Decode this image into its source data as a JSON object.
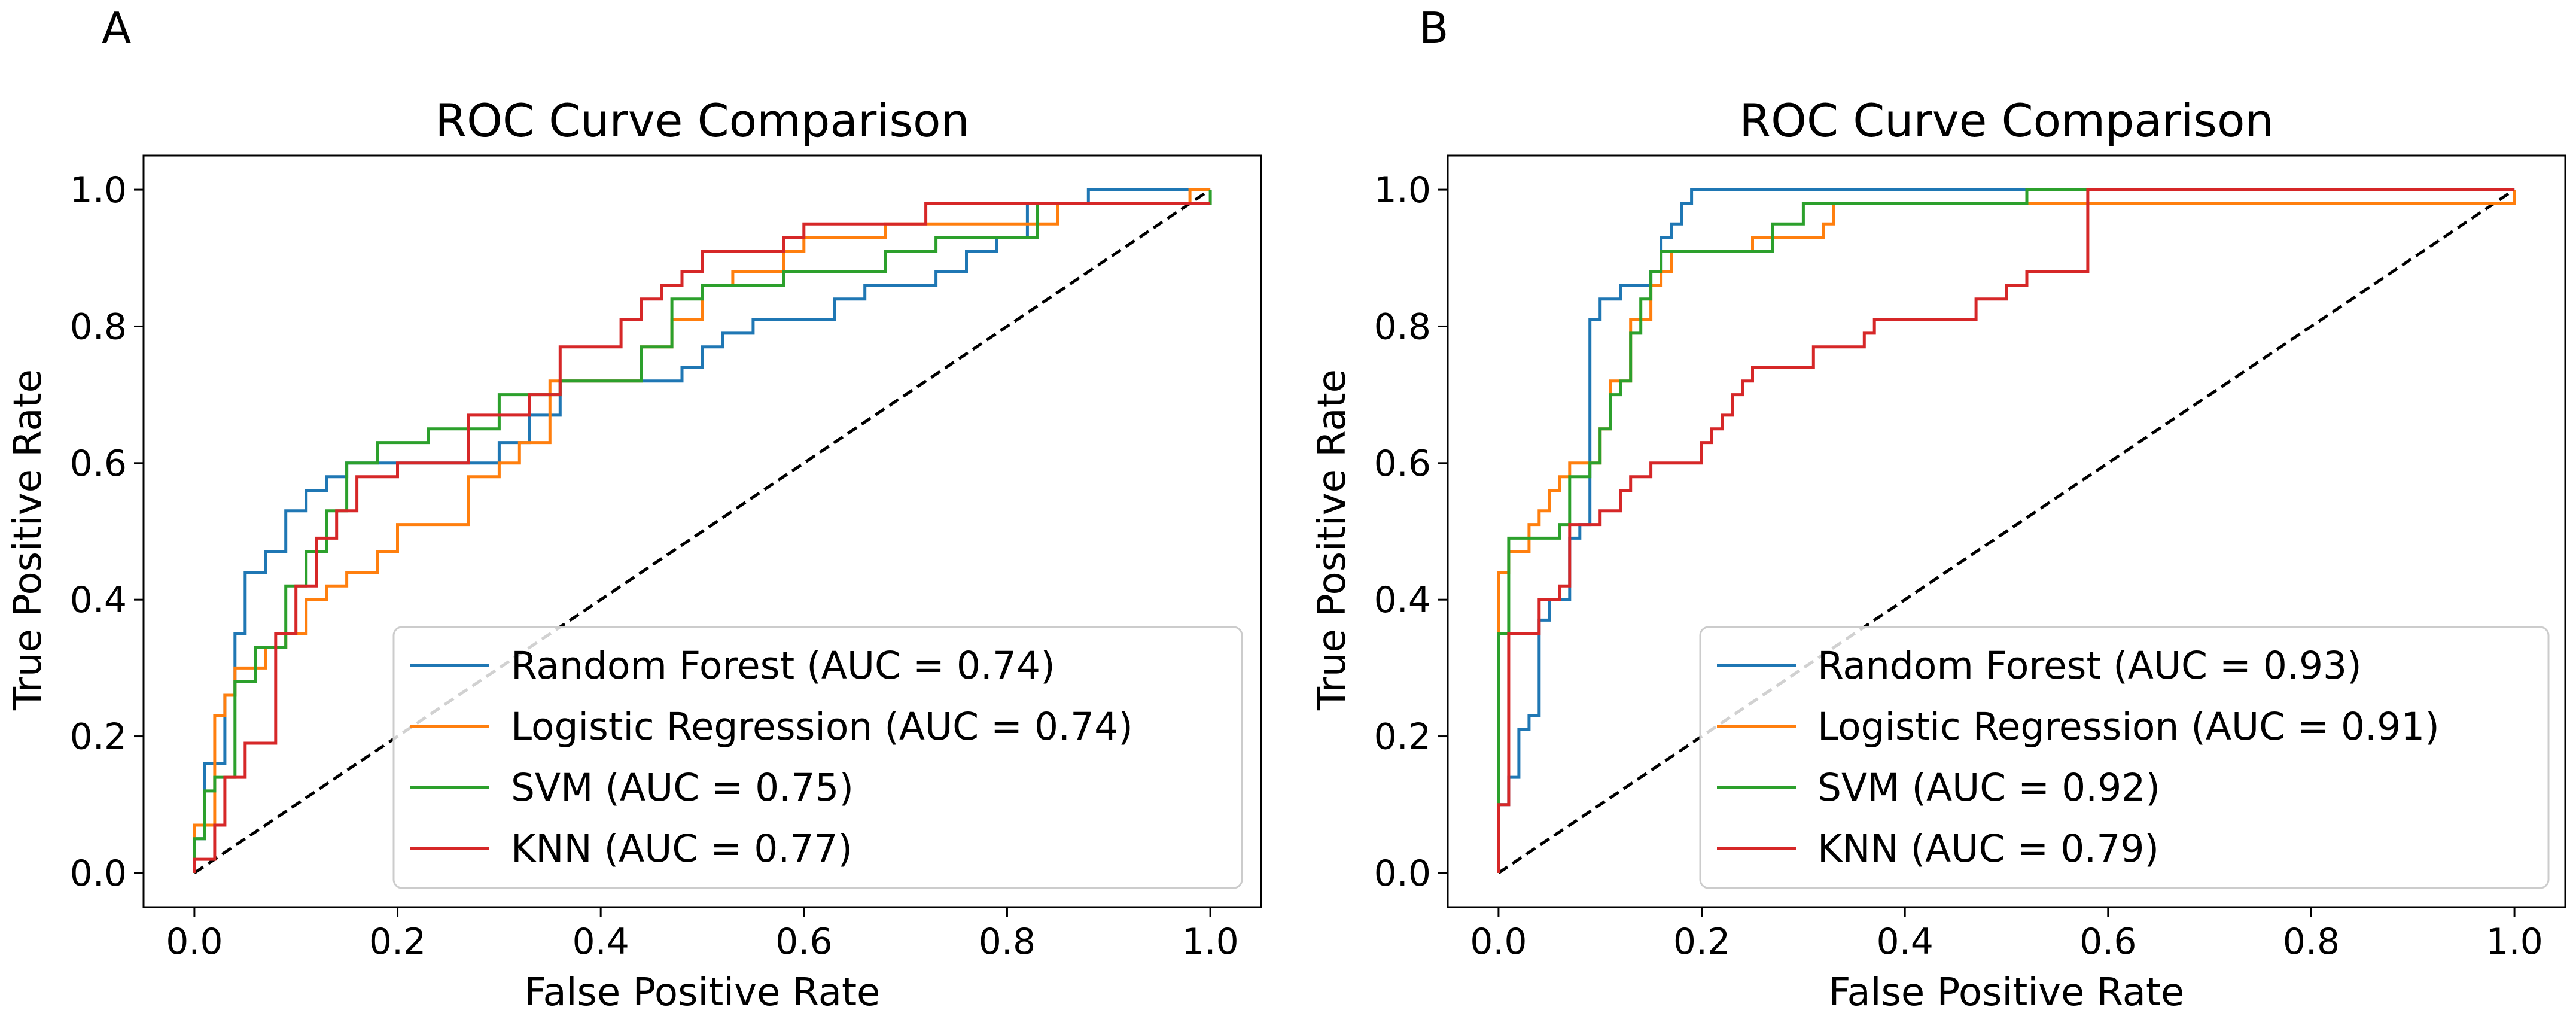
{
  "chart_data": [
    {
      "type": "line",
      "panel_label": "A",
      "title": "ROC Curve Comparison",
      "xlabel": "False Positive Rate",
      "ylabel": "True Positive Rate",
      "xlim": [
        -0.05,
        1.05
      ],
      "ylim": [
        -0.05,
        1.05
      ],
      "xticks": [
        "0.0",
        "0.2",
        "0.4",
        "0.6",
        "0.8",
        "1.0"
      ],
      "yticks": [
        "0.0",
        "0.2",
        "0.4",
        "0.6",
        "0.8",
        "1.0"
      ],
      "legend_position": "lower-right",
      "reference_line": {
        "x": [
          0,
          1
        ],
        "y": [
          0,
          1
        ],
        "style": "dashed",
        "color": "#000000"
      },
      "series": [
        {
          "name": "Random Forest (AUC = 0.74)",
          "color": "#1f77b4",
          "x": [
            0,
            0,
            0.01,
            0.01,
            0.03,
            0.03,
            0.04,
            0.04,
            0.05,
            0.05,
            0.07,
            0.07,
            0.09,
            0.09,
            0.11,
            0.11,
            0.13,
            0.13,
            0.15,
            0.15,
            0.17,
            0.17,
            0.2,
            0.2,
            0.24,
            0.24,
            0.3,
            0.3,
            0.33,
            0.33,
            0.36,
            0.36,
            0.4,
            0.4,
            0.48,
            0.48,
            0.5,
            0.5,
            0.52,
            0.52,
            0.55,
            0.55,
            0.58,
            0.58,
            0.63,
            0.63,
            0.66,
            0.66,
            0.69,
            0.69,
            0.73,
            0.73,
            0.76,
            0.76,
            0.79,
            0.79,
            0.82,
            0.82,
            0.88,
            0.88,
            1.0
          ],
          "y": [
            0,
            0.05,
            0.05,
            0.16,
            0.16,
            0.26,
            0.26,
            0.35,
            0.35,
            0.44,
            0.44,
            0.47,
            0.47,
            0.53,
            0.53,
            0.56,
            0.56,
            0.58,
            0.58,
            0.6,
            0.6,
            0.6,
            0.6,
            0.6,
            0.6,
            0.6,
            0.6,
            0.63,
            0.63,
            0.67,
            0.67,
            0.72,
            0.72,
            0.72,
            0.72,
            0.74,
            0.74,
            0.77,
            0.77,
            0.79,
            0.79,
            0.81,
            0.81,
            0.81,
            0.81,
            0.84,
            0.84,
            0.86,
            0.86,
            0.86,
            0.86,
            0.88,
            0.88,
            0.91,
            0.91,
            0.93,
            0.93,
            0.98,
            0.98,
            1.0,
            1.0
          ]
        },
        {
          "name": "Logistic Regression (AUC = 0.74)",
          "color": "#ff7f0e",
          "x": [
            0,
            0,
            0.02,
            0.02,
            0.03,
            0.03,
            0.04,
            0.04,
            0.07,
            0.07,
            0.09,
            0.09,
            0.11,
            0.11,
            0.13,
            0.13,
            0.15,
            0.15,
            0.18,
            0.18,
            0.2,
            0.2,
            0.27,
            0.27,
            0.3,
            0.3,
            0.32,
            0.32,
            0.35,
            0.35,
            0.44,
            0.44,
            0.47,
            0.47,
            0.5,
            0.5,
            0.53,
            0.53,
            0.55,
            0.55,
            0.58,
            0.58,
            0.6,
            0.6,
            0.68,
            0.68,
            0.85,
            0.85,
            0.98,
            0.98,
            1.0
          ],
          "y": [
            0,
            0.07,
            0.07,
            0.23,
            0.23,
            0.26,
            0.26,
            0.3,
            0.3,
            0.33,
            0.33,
            0.35,
            0.35,
            0.4,
            0.4,
            0.42,
            0.42,
            0.44,
            0.44,
            0.47,
            0.47,
            0.51,
            0.51,
            0.58,
            0.58,
            0.6,
            0.6,
            0.63,
            0.63,
            0.72,
            0.72,
            0.77,
            0.77,
            0.81,
            0.81,
            0.86,
            0.86,
            0.88,
            0.88,
            0.88,
            0.88,
            0.91,
            0.91,
            0.93,
            0.93,
            0.95,
            0.95,
            0.98,
            0.98,
            1.0,
            1.0
          ]
        },
        {
          "name": "SVM (AUC = 0.75)",
          "color": "#2ca02c",
          "x": [
            0,
            0,
            0.01,
            0.01,
            0.02,
            0.02,
            0.04,
            0.04,
            0.06,
            0.06,
            0.09,
            0.09,
            0.11,
            0.11,
            0.13,
            0.13,
            0.15,
            0.15,
            0.18,
            0.18,
            0.23,
            0.23,
            0.3,
            0.3,
            0.32,
            0.32,
            0.36,
            0.36,
            0.44,
            0.44,
            0.47,
            0.47,
            0.5,
            0.5,
            0.58,
            0.58,
            0.68,
            0.68,
            0.73,
            0.73,
            0.83,
            0.83,
            1.0,
            1.0
          ],
          "y": [
            0,
            0.05,
            0.05,
            0.12,
            0.12,
            0.14,
            0.14,
            0.28,
            0.28,
            0.33,
            0.33,
            0.42,
            0.42,
            0.47,
            0.47,
            0.53,
            0.53,
            0.6,
            0.6,
            0.63,
            0.63,
            0.65,
            0.65,
            0.7,
            0.7,
            0.7,
            0.7,
            0.72,
            0.72,
            0.77,
            0.77,
            0.84,
            0.84,
            0.86,
            0.86,
            0.88,
            0.88,
            0.91,
            0.91,
            0.93,
            0.93,
            0.98,
            0.98,
            1.0
          ]
        },
        {
          "name": "KNN (AUC = 0.77)",
          "color": "#d62728",
          "x": [
            0,
            0,
            0.02,
            0.02,
            0.03,
            0.03,
            0.05,
            0.05,
            0.08,
            0.08,
            0.1,
            0.1,
            0.12,
            0.12,
            0.14,
            0.14,
            0.16,
            0.16,
            0.2,
            0.2,
            0.27,
            0.27,
            0.33,
            0.33,
            0.36,
            0.36,
            0.42,
            0.42,
            0.44,
            0.44,
            0.46,
            0.46,
            0.48,
            0.48,
            0.5,
            0.5,
            0.55,
            0.55,
            0.58,
            0.58,
            0.6,
            0.6,
            0.68,
            0.68,
            0.72,
            0.72,
            1.0
          ],
          "y": [
            0,
            0.02,
            0.02,
            0.07,
            0.07,
            0.14,
            0.14,
            0.19,
            0.19,
            0.35,
            0.35,
            0.42,
            0.42,
            0.49,
            0.49,
            0.53,
            0.53,
            0.58,
            0.58,
            0.6,
            0.6,
            0.67,
            0.67,
            0.7,
            0.7,
            0.77,
            0.77,
            0.81,
            0.81,
            0.84,
            0.84,
            0.86,
            0.86,
            0.88,
            0.88,
            0.91,
            0.91,
            0.91,
            0.91,
            0.93,
            0.93,
            0.95,
            0.95,
            0.95,
            0.95,
            0.98,
            0.98
          ]
        }
      ]
    },
    {
      "type": "line",
      "panel_label": "B",
      "title": "ROC Curve Comparison",
      "xlabel": "False Positive Rate",
      "ylabel": "True Positive Rate",
      "xlim": [
        -0.05,
        1.05
      ],
      "ylim": [
        -0.05,
        1.05
      ],
      "xticks": [
        "0.0",
        "0.2",
        "0.4",
        "0.6",
        "0.8",
        "1.0"
      ],
      "yticks": [
        "0.0",
        "0.2",
        "0.4",
        "0.6",
        "0.8",
        "1.0"
      ],
      "legend_position": "lower-right",
      "reference_line": {
        "x": [
          0,
          1
        ],
        "y": [
          0,
          1
        ],
        "style": "dashed",
        "color": "#000000"
      },
      "series": [
        {
          "name": "Random Forest (AUC = 0.93)",
          "color": "#1f77b4",
          "x": [
            0,
            0,
            0.01,
            0.01,
            0.02,
            0.02,
            0.03,
            0.03,
            0.04,
            0.04,
            0.05,
            0.05,
            0.07,
            0.07,
            0.08,
            0.08,
            0.09,
            0.09,
            0.1,
            0.1,
            0.12,
            0.12,
            0.15,
            0.15,
            0.16,
            0.16,
            0.17,
            0.17,
            0.18,
            0.18,
            0.19,
            0.19,
            1.0
          ],
          "y": [
            0,
            0.1,
            0.1,
            0.14,
            0.14,
            0.21,
            0.21,
            0.23,
            0.23,
            0.37,
            0.37,
            0.4,
            0.4,
            0.49,
            0.49,
            0.51,
            0.51,
            0.81,
            0.81,
            0.84,
            0.84,
            0.86,
            0.86,
            0.88,
            0.88,
            0.93,
            0.93,
            0.95,
            0.95,
            0.98,
            0.98,
            1.0,
            1.0
          ]
        },
        {
          "name": "Logistic Regression (AUC = 0.91)",
          "color": "#ff7f0e",
          "x": [
            0,
            0,
            0.01,
            0.01,
            0.03,
            0.03,
            0.04,
            0.04,
            0.05,
            0.05,
            0.06,
            0.06,
            0.07,
            0.07,
            0.1,
            0.1,
            0.11,
            0.11,
            0.13,
            0.13,
            0.15,
            0.15,
            0.16,
            0.16,
            0.17,
            0.17,
            0.25,
            0.25,
            0.32,
            0.32,
            0.33,
            0.33,
            0.34,
            0.34,
            1.0,
            1.0
          ],
          "y": [
            0,
            0.44,
            0.44,
            0.47,
            0.47,
            0.51,
            0.51,
            0.53,
            0.53,
            0.56,
            0.56,
            0.58,
            0.58,
            0.6,
            0.6,
            0.65,
            0.65,
            0.72,
            0.72,
            0.81,
            0.81,
            0.86,
            0.86,
            0.88,
            0.88,
            0.91,
            0.91,
            0.93,
            0.93,
            0.95,
            0.95,
            0.98,
            0.98,
            0.98,
            0.98,
            1.0
          ]
        },
        {
          "name": "SVM (AUC = 0.92)",
          "color": "#2ca02c",
          "x": [
            0,
            0,
            0.01,
            0.01,
            0.03,
            0.03,
            0.06,
            0.06,
            0.07,
            0.07,
            0.09,
            0.09,
            0.1,
            0.1,
            0.11,
            0.11,
            0.12,
            0.12,
            0.13,
            0.13,
            0.14,
            0.14,
            0.15,
            0.15,
            0.16,
            0.16,
            0.27,
            0.27,
            0.3,
            0.3,
            0.52,
            0.52,
            1.0
          ],
          "y": [
            0,
            0.35,
            0.35,
            0.49,
            0.49,
            0.49,
            0.49,
            0.51,
            0.51,
            0.58,
            0.58,
            0.6,
            0.6,
            0.65,
            0.65,
            0.7,
            0.7,
            0.72,
            0.72,
            0.79,
            0.79,
            0.84,
            0.84,
            0.88,
            0.88,
            0.91,
            0.91,
            0.95,
            0.95,
            0.98,
            0.98,
            1.0,
            1.0
          ]
        },
        {
          "name": "KNN (AUC = 0.79)",
          "color": "#d62728",
          "x": [
            0,
            0,
            0.01,
            0.01,
            0.04,
            0.04,
            0.06,
            0.06,
            0.07,
            0.07,
            0.1,
            0.1,
            0.12,
            0.12,
            0.13,
            0.13,
            0.15,
            0.15,
            0.2,
            0.2,
            0.21,
            0.21,
            0.22,
            0.22,
            0.23,
            0.23,
            0.24,
            0.24,
            0.25,
            0.25,
            0.31,
            0.31,
            0.36,
            0.36,
            0.37,
            0.37,
            0.38,
            0.38,
            0.42,
            0.42,
            0.47,
            0.47,
            0.5,
            0.5,
            0.52,
            0.52,
            0.54,
            0.54,
            0.58,
            0.58,
            1.0
          ],
          "y": [
            0,
            0.1,
            0.1,
            0.35,
            0.35,
            0.4,
            0.4,
            0.42,
            0.42,
            0.51,
            0.51,
            0.53,
            0.53,
            0.56,
            0.56,
            0.58,
            0.58,
            0.6,
            0.6,
            0.63,
            0.63,
            0.65,
            0.65,
            0.67,
            0.67,
            0.7,
            0.7,
            0.72,
            0.72,
            0.74,
            0.74,
            0.77,
            0.77,
            0.79,
            0.79,
            0.81,
            0.81,
            0.81,
            0.81,
            0.81,
            0.81,
            0.84,
            0.84,
            0.86,
            0.86,
            0.88,
            0.88,
            0.88,
            0.88,
            1.0,
            1.0
          ]
        }
      ]
    }
  ]
}
